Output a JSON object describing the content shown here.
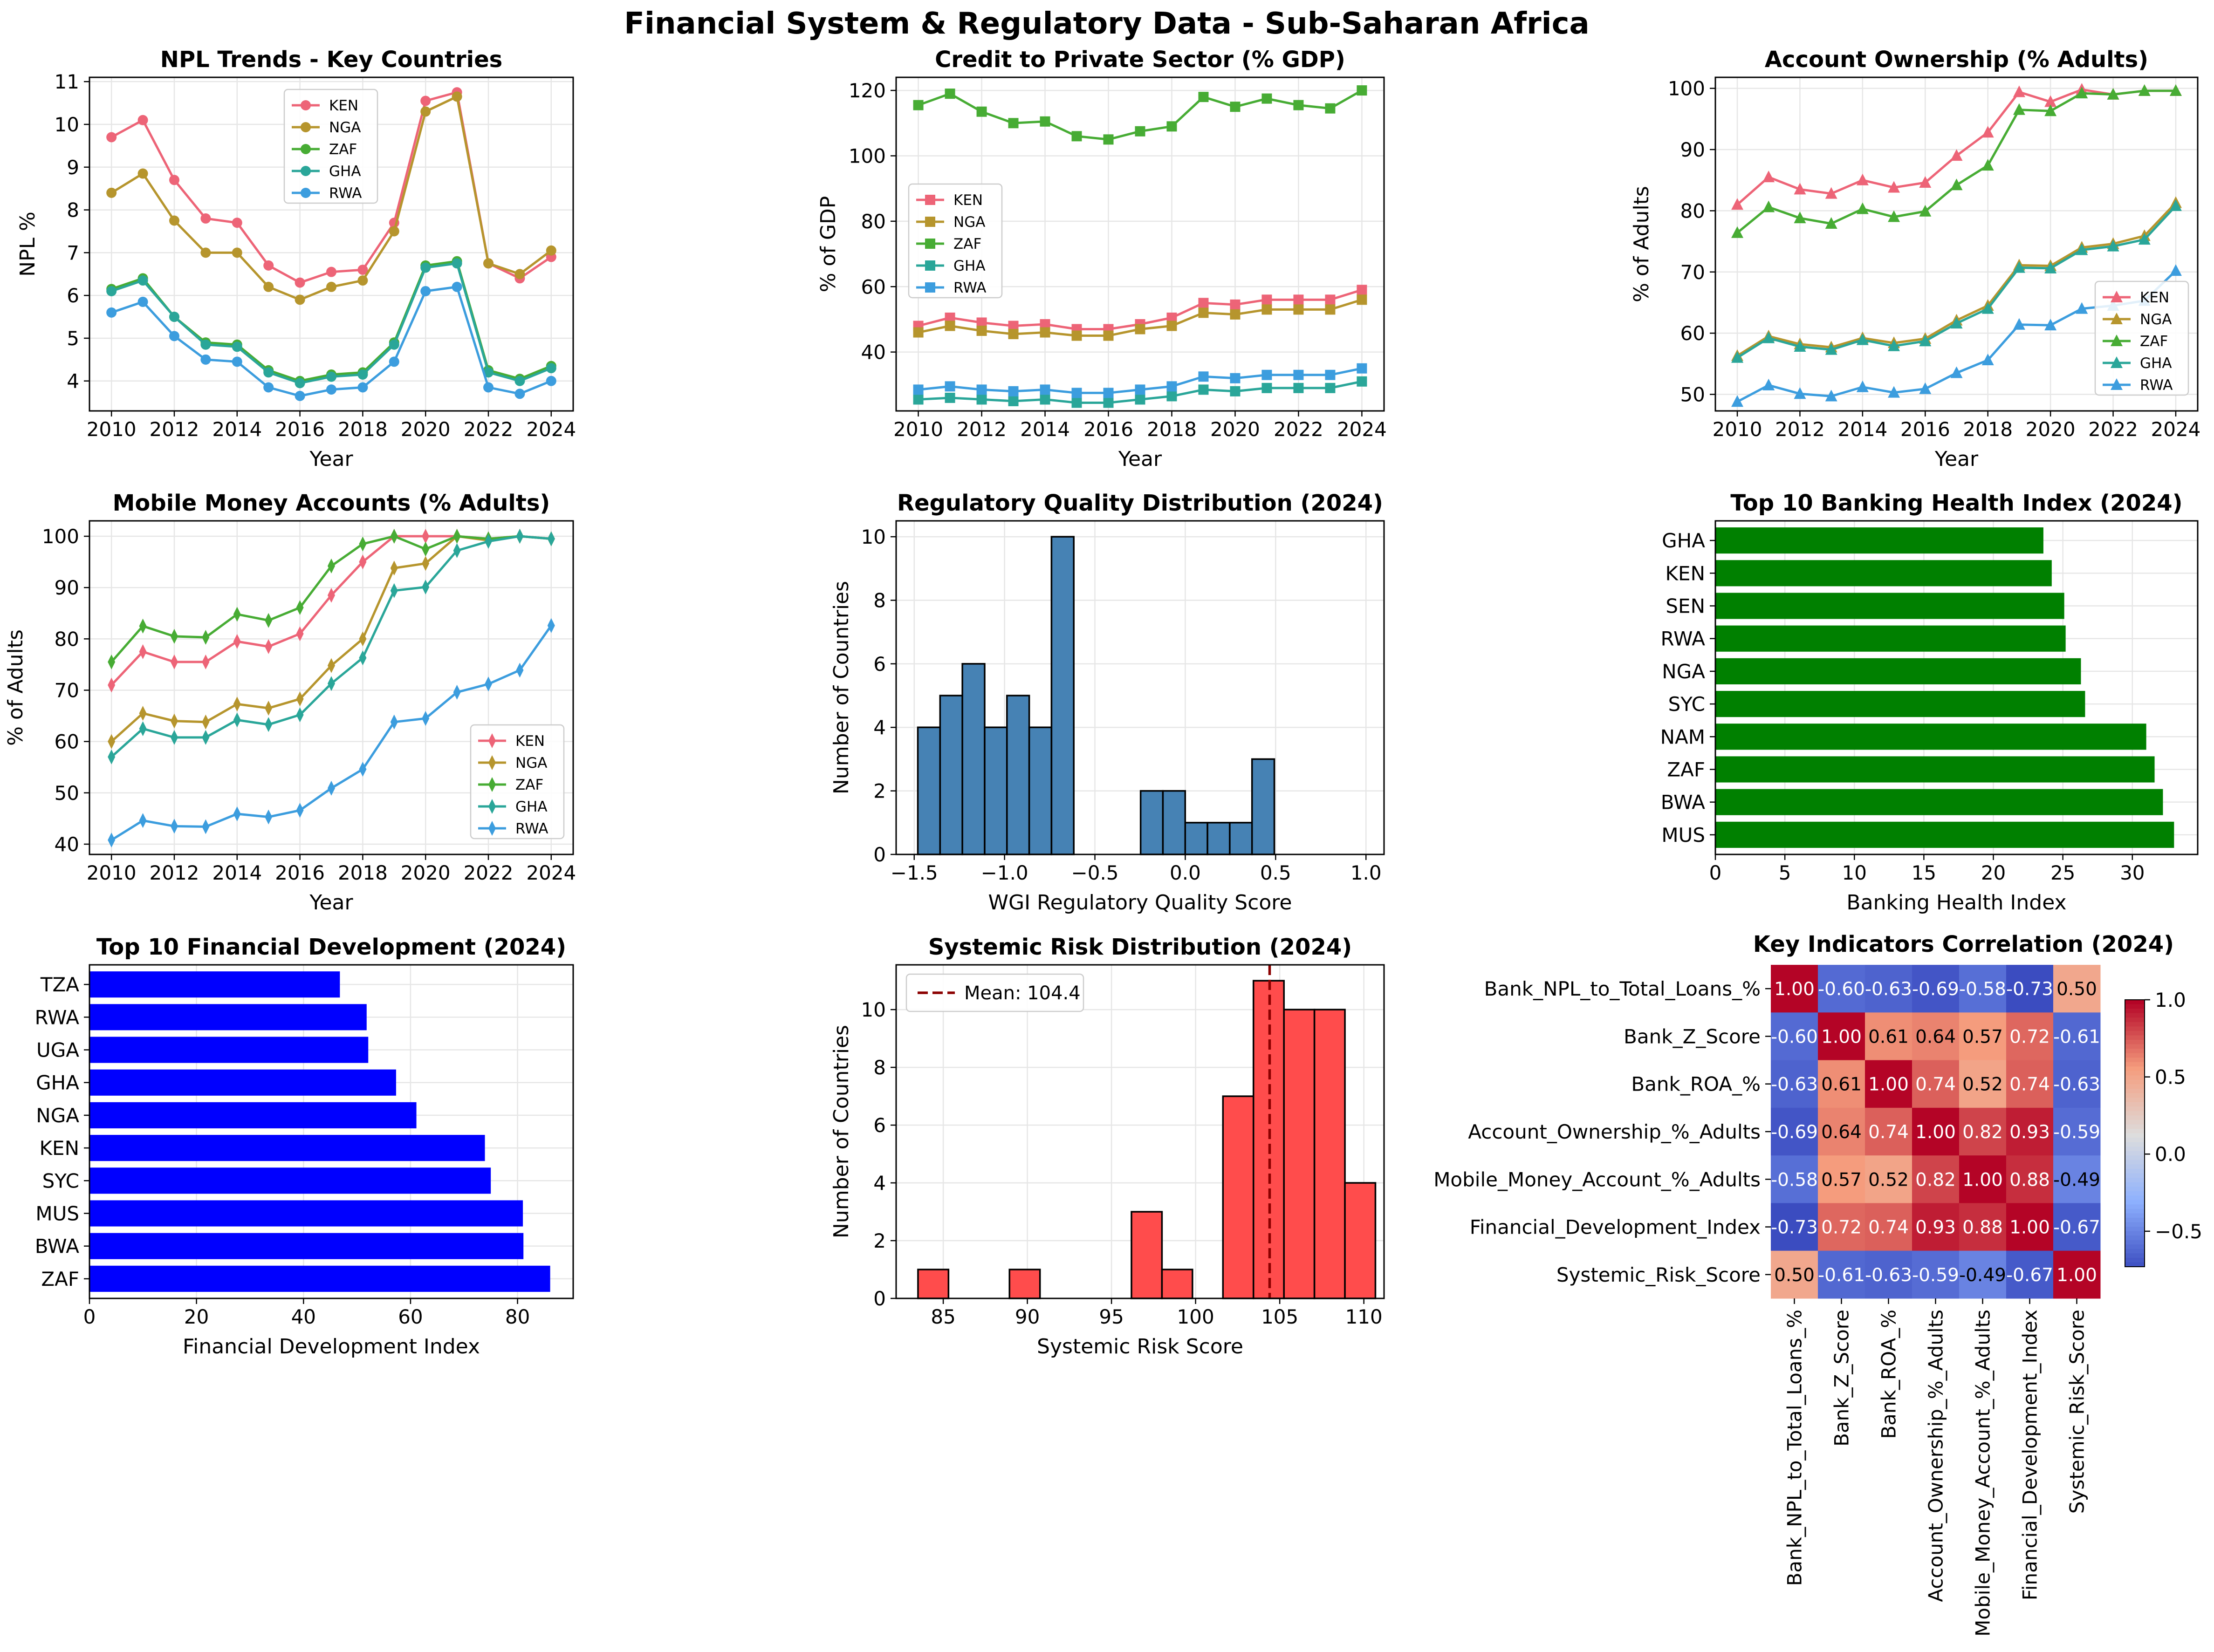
{
  "title": "Financial System & Regulatory Data - Sub-Saharan Africa",
  "colors": {
    "KEN": "#ed6477",
    "NGA": "#b6952d",
    "ZAF": "#47ac34",
    "GHA": "#2aa699",
    "RWA": "#3c9dde",
    "hist_blue": "#4682b4",
    "hist_red": "#ff4c4c",
    "bar_green": "#008000",
    "bar_blue": "#0000ff",
    "mean_line": "#8b0000",
    "grid": "#e6e6e6"
  },
  "chart_data": [
    {
      "type": "line",
      "title": "NPL Trends - Key Countries",
      "xlabel": "Year",
      "ylabel": "NPL %",
      "marker": "circle",
      "legend": "top-center",
      "x": [
        2010,
        2011,
        2012,
        2013,
        2014,
        2015,
        2016,
        2017,
        2018,
        2019,
        2020,
        2021,
        2022,
        2023,
        2024
      ],
      "xlim": [
        2009.3,
        2024.7
      ],
      "ylim": [
        3.3,
        11.1
      ],
      "xticks": [
        "2010",
        "2012",
        "2014",
        "2016",
        "2018",
        "2020",
        "2022",
        "2024"
      ],
      "yticks": [
        "4",
        "5",
        "6",
        "7",
        "8",
        "9",
        "10",
        "11"
      ],
      "series": [
        {
          "name": "KEN",
          "values": [
            9.7,
            10.1,
            8.7,
            7.8,
            7.7,
            6.7,
            6.3,
            6.55,
            6.6,
            7.7,
            10.55,
            10.75,
            6.75,
            6.4,
            6.9
          ]
        },
        {
          "name": "NGA",
          "values": [
            8.4,
            8.85,
            7.75,
            7.0,
            7.0,
            6.2,
            5.9,
            6.2,
            6.35,
            7.5,
            10.3,
            10.65,
            6.75,
            6.5,
            7.05
          ]
        },
        {
          "name": "ZAF",
          "values": [
            6.15,
            6.4,
            5.5,
            4.9,
            4.85,
            4.25,
            4.0,
            4.15,
            4.2,
            4.9,
            6.7,
            6.8,
            4.25,
            4.05,
            4.35
          ]
        },
        {
          "name": "GHA",
          "values": [
            6.1,
            6.35,
            5.5,
            4.85,
            4.8,
            4.2,
            3.95,
            4.1,
            4.15,
            4.85,
            6.65,
            6.75,
            4.2,
            4.0,
            4.3
          ]
        },
        {
          "name": "RWA",
          "values": [
            5.6,
            5.85,
            5.05,
            4.5,
            4.45,
            3.85,
            3.65,
            3.8,
            3.85,
            4.45,
            6.1,
            6.2,
            3.85,
            3.7,
            4.0
          ]
        }
      ]
    },
    {
      "type": "line",
      "title": "Credit to Private Sector (% GDP)",
      "xlabel": "Year",
      "ylabel": "% of GDP",
      "marker": "square",
      "legend": "center-left",
      "x": [
        2010,
        2011,
        2012,
        2013,
        2014,
        2015,
        2016,
        2017,
        2018,
        2019,
        2020,
        2021,
        2022,
        2023,
        2024
      ],
      "xlim": [
        2009.3,
        2024.7
      ],
      "ylim": [
        22,
        124
      ],
      "xticks": [
        "2010",
        "2012",
        "2014",
        "2016",
        "2018",
        "2020",
        "2022",
        "2024"
      ],
      "yticks": [
        "40",
        "60",
        "80",
        "100",
        "120"
      ],
      "series": [
        {
          "name": "KEN",
          "values": [
            48,
            50.5,
            49,
            48,
            48.5,
            47,
            47,
            48.5,
            50.5,
            55,
            54.5,
            56,
            56,
            56,
            59
          ]
        },
        {
          "name": "NGA",
          "values": [
            46,
            48,
            46.5,
            45.5,
            46,
            45,
            45,
            47,
            48,
            52,
            51.5,
            53,
            53,
            53,
            56
          ]
        },
        {
          "name": "ZAF",
          "values": [
            115.5,
            119,
            113.5,
            110,
            110.5,
            106,
            105,
            107.5,
            109,
            118,
            115,
            117.5,
            115.5,
            114.5,
            120
          ]
        },
        {
          "name": "GHA",
          "values": [
            25.5,
            26,
            25.5,
            25,
            25.5,
            24.5,
            24.5,
            25.5,
            26.5,
            28.5,
            28,
            29,
            29,
            29,
            31
          ]
        },
        {
          "name": "RWA",
          "values": [
            28.5,
            29.5,
            28.5,
            28,
            28.5,
            27.5,
            27.5,
            28.5,
            29.5,
            32.5,
            32,
            33,
            33,
            33,
            35
          ]
        }
      ]
    },
    {
      "type": "line",
      "title": "Account Ownership (% Adults)",
      "xlabel": "Year",
      "ylabel": "% of Adults",
      "marker": "triangle",
      "legend": "lower-right",
      "x": [
        2010,
        2011,
        2012,
        2013,
        2014,
        2015,
        2016,
        2017,
        2018,
        2019,
        2020,
        2021,
        2022,
        2023,
        2024
      ],
      "xlim": [
        2009.3,
        2024.7
      ],
      "ylim": [
        47.3,
        101.8
      ],
      "xticks": [
        "2010",
        "2012",
        "2014",
        "2016",
        "2018",
        "2020",
        "2022",
        "2024"
      ],
      "yticks": [
        "50",
        "60",
        "70",
        "80",
        "90",
        "100"
      ],
      "series": [
        {
          "name": "KEN",
          "values": [
            81,
            85.5,
            83.5,
            82.8,
            85,
            83.8,
            84.6,
            89,
            92.8,
            99.4,
            97.8,
            99.8,
            99,
            99.6,
            99.6
          ]
        },
        {
          "name": "NGA",
          "values": [
            56.3,
            59.5,
            58.2,
            57.7,
            59.2,
            58.4,
            59.1,
            62.1,
            64.5,
            71.1,
            71,
            74,
            74.6,
            75.9,
            81.3
          ]
        },
        {
          "name": "ZAF",
          "values": [
            76.4,
            80.6,
            78.8,
            77.9,
            80.3,
            79,
            79.9,
            84.2,
            87.4,
            96.5,
            96.3,
            99.2,
            99,
            99.6,
            99.6
          ]
        },
        {
          "name": "GHA",
          "values": [
            56,
            59.2,
            57.8,
            57.3,
            58.9,
            57.9,
            58.7,
            61.6,
            64,
            70.7,
            70.6,
            73.6,
            74.2,
            75.3,
            80.8
          ]
        },
        {
          "name": "RWA",
          "values": [
            48.8,
            51.5,
            50.1,
            49.7,
            51.2,
            50.3,
            50.9,
            53.5,
            55.6,
            61.4,
            61.3,
            64,
            64.5,
            65.3,
            70.2
          ]
        }
      ]
    },
    {
      "type": "line",
      "title": "Mobile Money Accounts (% Adults)",
      "xlabel": "Year",
      "ylabel": "% of Adults",
      "marker": "diamond",
      "legend": "lower-right",
      "x": [
        2010,
        2011,
        2012,
        2013,
        2014,
        2015,
        2016,
        2017,
        2018,
        2019,
        2020,
        2021,
        2022,
        2023,
        2024
      ],
      "xlim": [
        2009.3,
        2024.7
      ],
      "ylim": [
        38,
        103
      ],
      "xticks": [
        "2010",
        "2012",
        "2014",
        "2016",
        "2018",
        "2020",
        "2022",
        "2024"
      ],
      "yticks": [
        "40",
        "50",
        "60",
        "70",
        "80",
        "90",
        "100"
      ],
      "series": [
        {
          "name": "KEN",
          "values": [
            71,
            77.5,
            75.5,
            75.5,
            79.5,
            78.5,
            81,
            88.5,
            95,
            100,
            100,
            100,
            99.5,
            100,
            99.5
          ]
        },
        {
          "name": "NGA",
          "values": [
            60,
            65.5,
            64,
            63.8,
            67.3,
            66.5,
            68.3,
            74.8,
            80,
            93.8,
            94.7,
            100,
            99.2,
            100,
            99.5
          ]
        },
        {
          "name": "ZAF",
          "values": [
            75.5,
            82.5,
            80.5,
            80.3,
            84.8,
            83.6,
            86.1,
            94.2,
            98.5,
            100,
            97.5,
            100,
            99.5,
            100,
            99.5
          ]
        },
        {
          "name": "GHA",
          "values": [
            57,
            62.5,
            60.8,
            60.8,
            64.2,
            63.3,
            65.2,
            71.3,
            76.3,
            89.4,
            90.1,
            97.2,
            99,
            100,
            99.5
          ]
        },
        {
          "name": "RWA",
          "values": [
            40.8,
            44.6,
            43.5,
            43.4,
            45.9,
            45.3,
            46.6,
            50.9,
            54.6,
            63.8,
            64.5,
            69.6,
            71.2,
            73.9,
            82.6
          ]
        }
      ]
    },
    {
      "type": "histogram",
      "title": "Regulatory Quality Distribution (2024)",
      "xlabel": "WGI Regulatory Quality Score",
      "ylabel": "Number of Countries",
      "bin_start": -1.48,
      "bin_width": 0.1233,
      "counts": [
        4,
        5,
        6,
        4,
        5,
        4,
        10,
        0,
        0,
        0,
        2,
        2,
        1,
        1,
        1,
        3
      ],
      "xlim": [
        -1.6,
        1.1
      ],
      "ylim": [
        0,
        10.5
      ],
      "xticks": [
        -1.5,
        -1.0,
        -0.5,
        0.0,
        0.5,
        1.0
      ],
      "xtick_labels": [
        "−1.5",
        "−1.0",
        "−0.5",
        "0.0",
        "0.5",
        "1.0"
      ],
      "yticks": [
        0,
        2,
        4,
        6,
        8,
        10
      ],
      "ytick_labels": [
        "0",
        "2",
        "4",
        "6",
        "8",
        "10"
      ]
    },
    {
      "type": "barh",
      "title": "Top 10 Banking Health Index (2024)",
      "xlabel": "Banking Health Index",
      "categories": [
        "GHA",
        "KEN",
        "SEN",
        "RWA",
        "NGA",
        "SYC",
        "NAM",
        "ZAF",
        "BWA",
        "MUS"
      ],
      "values": [
        23.6,
        24.2,
        25.1,
        25.2,
        26.3,
        26.6,
        31,
        31.6,
        32.2,
        33
      ],
      "xlim": [
        0,
        34.7
      ],
      "xticks": [
        0,
        5,
        10,
        15,
        20,
        25,
        30
      ],
      "xtick_labels": [
        "0",
        "5",
        "10",
        "15",
        "20",
        "25",
        "30"
      ]
    },
    {
      "type": "barh",
      "title": "Top 10 Financial Development (2024)",
      "xlabel": "Financial Development Index",
      "categories": [
        "TZA",
        "RWA",
        "UGA",
        "GHA",
        "NGA",
        "KEN",
        "SYC",
        "MUS",
        "BWA",
        "ZAF"
      ],
      "values": [
        46.8,
        51.8,
        52.1,
        57.3,
        61.1,
        73.9,
        75,
        81,
        81.1,
        86.1
      ],
      "xlim": [
        0,
        90.4
      ],
      "xticks": [
        0,
        20,
        40,
        60,
        80
      ],
      "xtick_labels": [
        "0",
        "20",
        "40",
        "60",
        "80"
      ]
    },
    {
      "type": "histogram",
      "title": "Systemic Risk Distribution (2024)",
      "xlabel": "Systemic Risk Score",
      "ylabel": "Number of Countries",
      "bin_start": 83.5,
      "bin_width": 1.8125,
      "counts": [
        1,
        0,
        0,
        1,
        0,
        0,
        0,
        3,
        1,
        0,
        7,
        11,
        10,
        10,
        4
      ],
      "mean": 104.4,
      "mean_label": "Mean: 104.4",
      "legend": "upper-left",
      "xlim": [
        82.2,
        111.2
      ],
      "ylim": [
        0,
        11.55
      ],
      "xticks": [
        85,
        90,
        95,
        100,
        105,
        110
      ],
      "xtick_labels": [
        "85",
        "90",
        "95",
        "100",
        "105",
        "110"
      ],
      "yticks": [
        0,
        2,
        4,
        6,
        8,
        10
      ],
      "ytick_labels": [
        "0",
        "2",
        "4",
        "6",
        "8",
        "10"
      ]
    },
    {
      "type": "heatmap",
      "title": "Key Indicators Correlation (2024)",
      "labels": [
        "Bank_NPL_to_Total_Loans_%",
        "Bank_Z_Score",
        "Bank_ROA_%",
        "Account_Ownership_%_Adults",
        "Mobile_Money_Account_%_Adults",
        "Financial_Development_Index",
        "Systemic_Risk_Score"
      ],
      "matrix": [
        [
          1.0,
          -0.6,
          -0.63,
          -0.69,
          -0.58,
          -0.73,
          0.5
        ],
        [
          -0.6,
          1.0,
          0.61,
          0.64,
          0.57,
          0.72,
          -0.61
        ],
        [
          -0.63,
          0.61,
          1.0,
          0.74,
          0.52,
          0.74,
          -0.63
        ],
        [
          -0.69,
          0.64,
          0.74,
          1.0,
          0.82,
          0.93,
          -0.59
        ],
        [
          -0.58,
          0.57,
          0.52,
          0.82,
          1.0,
          0.88,
          -0.49
        ],
        [
          -0.73,
          0.72,
          0.74,
          0.93,
          0.88,
          1.0,
          -0.67
        ],
        [
          0.5,
          -0.61,
          -0.63,
          -0.59,
          -0.49,
          -0.67,
          1.0
        ]
      ],
      "colorbar_min": -0.73,
      "colorbar_max": 1.0,
      "colorbar_ticks": [
        1.0,
        0.5,
        0.0,
        -0.5
      ],
      "colorbar_tick_labels": [
        "1.0",
        "0.5",
        "0.0",
        "−0.5"
      ],
      "colormap": "coolwarm"
    }
  ]
}
